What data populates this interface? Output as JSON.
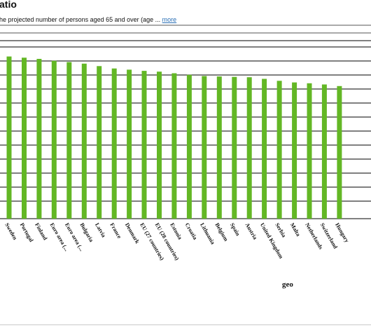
{
  "header": {
    "title": "atio",
    "subtitle": "he projected number of persons aged 65 and over (age ...",
    "more_link": "more"
  },
  "colors": {
    "bar": "#63b725",
    "grid": "#000000",
    "link": "#2a6fb5"
  },
  "chart_data": {
    "type": "bar",
    "title": "",
    "xlabel": "geo",
    "ylabel": "",
    "grid": true,
    "legend": "none",
    "categories": [
      "Sweden",
      "Portugal",
      "Finland",
      "Euro area (...",
      "Euro area (...",
      "Bulgaria",
      "Latvia",
      "France",
      "Denmark",
      "EU (27 countries)",
      "EU (28 countries)",
      "Estonia",
      "Croatia",
      "Lithuania",
      "Belgium",
      "Spain",
      "Austria",
      "United Kingdom",
      "Serbia",
      "Malta",
      "Netherlands",
      "Switzerland",
      "Hungary"
    ],
    "values": [
      40.6,
      40.3,
      40.0,
      39.5,
      39.2,
      38.8,
      38.2,
      37.6,
      37.3,
      37.0,
      36.8,
      36.4,
      36.0,
      35.7,
      35.6,
      35.5,
      35.4,
      35.0,
      34.5,
      34.1,
      33.9,
      33.6,
      33.2
    ]
  }
}
